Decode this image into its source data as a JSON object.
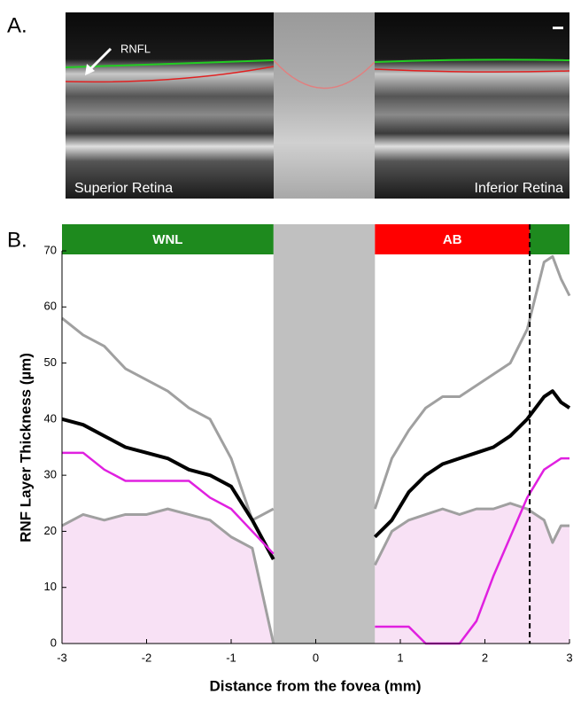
{
  "panel_labels": [
    "A.",
    "B."
  ],
  "image": {
    "annotation": "RNFL",
    "left_label": "Superior Retina",
    "right_label": "Inferior Retina"
  },
  "chart_data": {
    "type": "line",
    "xlabel": "Distance from the fovea (mm)",
    "ylabel": "RNF Layer Thickness (µm)",
    "x": [
      -3,
      -2.75,
      -2.5,
      -2.25,
      -2,
      -1.75,
      -1.5,
      -1.25,
      -1,
      -0.75,
      -0.5,
      0,
      0.7,
      0.9,
      1.1,
      1.3,
      1.5,
      1.7,
      1.9,
      2.1,
      2.3,
      2.5,
      2.7,
      2.8,
      2.9,
      3.0
    ],
    "series": [
      {
        "color": "#a0a0a0",
        "width": 3,
        "fill": "#f8e1f5",
        "values": [
          21,
          23,
          22,
          23,
          23,
          24,
          23,
          22,
          19,
          17,
          0,
          null,
          14,
          20,
          22,
          23,
          24,
          23,
          24,
          24,
          25,
          24,
          22,
          18,
          21,
          21
        ]
      },
      {
        "color": "#a0a0a0",
        "width": 3,
        "values": [
          58,
          55,
          53,
          49,
          47,
          45,
          42,
          40,
          33,
          22,
          24,
          null,
          24,
          33,
          38,
          42,
          44,
          44,
          46,
          48,
          50,
          56,
          68,
          69,
          65,
          62
        ]
      },
      {
        "color": "#000000",
        "width": 4,
        "values": [
          40,
          39,
          37,
          35,
          34,
          33,
          31,
          30,
          28,
          22,
          15,
          null,
          19,
          22,
          27,
          30,
          32,
          33,
          34,
          35,
          37,
          40,
          44,
          45,
          43,
          42
        ]
      },
      {
        "color": "#e020e0",
        "width": 2.5,
        "values": [
          34,
          34,
          31,
          29,
          29,
          29,
          29,
          26,
          24,
          20,
          16,
          null,
          3,
          3,
          3,
          0,
          0,
          0,
          4,
          12,
          19,
          26,
          31,
          32,
          33,
          33
        ]
      }
    ],
    "excluded": [
      -0.5,
      0.7
    ],
    "excluded_color": "#c0c0c0",
    "segments": [
      {
        "label": "WNL",
        "color": "#1e8a1e",
        "xlim": [
          -3,
          -0.5
        ]
      },
      {
        "label": "AB",
        "color": "#ff0000",
        "xlim": [
          0.7,
          2.53
        ]
      },
      {
        "color": "#1e8a1e",
        "xlim": [
          2.53,
          3
        ]
      }
    ],
    "vline": 2.53,
    "xlim": [
      -3,
      3
    ],
    "xticks": [
      -3,
      -2,
      -1,
      0,
      1,
      2,
      3
    ],
    "ylim": [
      0,
      70
    ],
    "yticks": [
      0,
      10,
      20,
      30,
      40,
      50,
      60,
      70
    ]
  }
}
